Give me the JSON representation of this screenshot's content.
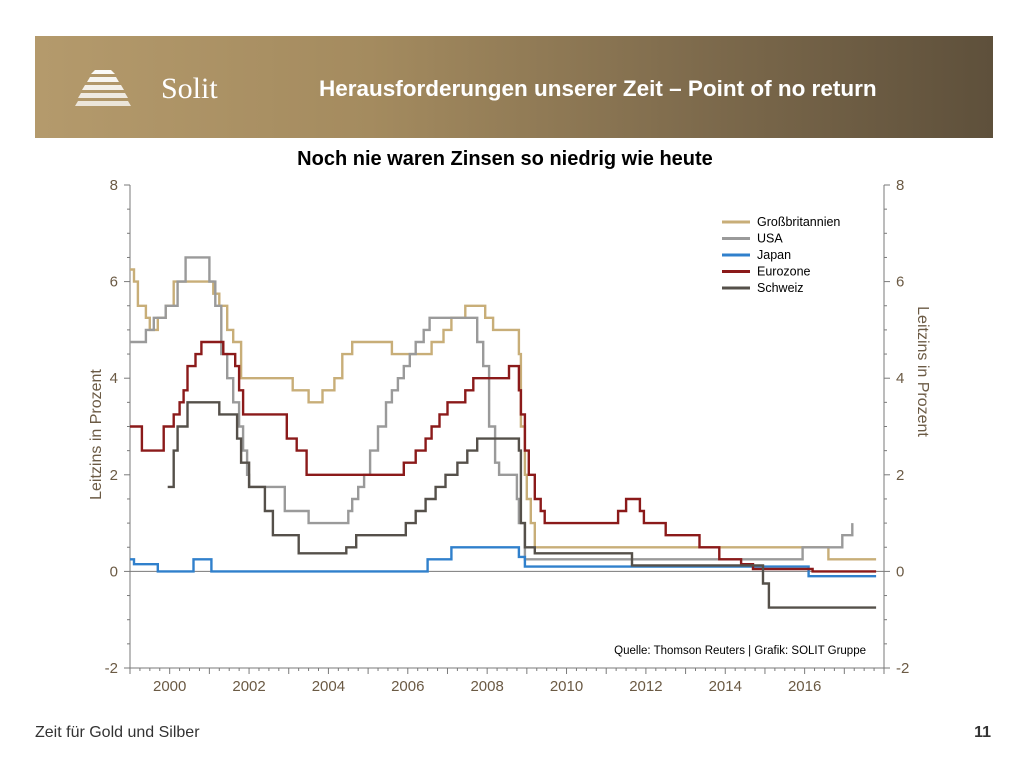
{
  "header": {
    "brand": "Solit",
    "title": "Herausforderungen unserer Zeit – Point of no return"
  },
  "footer": {
    "left_text": "Zeit für Gold und Silber",
    "page_number": "11"
  },
  "colors": {
    "banner_start": "#b49a6c",
    "banner_end": "#5e503b"
  },
  "chart_data": {
    "type": "line",
    "title": "Noch nie waren Zinsen so niedrig wie heute",
    "ylabel_left": "Leitzins in Prozent",
    "ylabel_right": "Leitzins in Prozent",
    "source": "Quelle: Thomson Reuters | Grafik: SOLIT Gruppe",
    "xlim": [
      1999.0,
      2018.0
    ],
    "ylim": [
      -2,
      8
    ],
    "x_ticks": [
      2000,
      2002,
      2004,
      2006,
      2008,
      2010,
      2012,
      2014,
      2016
    ],
    "y_ticks": [
      -2,
      0,
      2,
      4,
      6,
      8
    ],
    "legend_position": "top-right",
    "series": [
      {
        "name": "Großbritannien",
        "color": "#c8ae78",
        "points": [
          [
            1999.0,
            6.25
          ],
          [
            1999.1,
            6.0
          ],
          [
            1999.2,
            5.5
          ],
          [
            1999.4,
            5.25
          ],
          [
            1999.5,
            5.0
          ],
          [
            1999.7,
            5.25
          ],
          [
            1999.9,
            5.5
          ],
          [
            2000.1,
            6.0
          ],
          [
            2001.1,
            5.75
          ],
          [
            2001.25,
            5.5
          ],
          [
            2001.45,
            5.0
          ],
          [
            2001.6,
            4.75
          ],
          [
            2001.8,
            4.0
          ],
          [
            2003.1,
            3.75
          ],
          [
            2003.5,
            3.5
          ],
          [
            2003.85,
            3.75
          ],
          [
            2004.15,
            4.0
          ],
          [
            2004.35,
            4.5
          ],
          [
            2004.6,
            4.75
          ],
          [
            2005.6,
            4.5
          ],
          [
            2006.6,
            4.75
          ],
          [
            2006.9,
            5.0
          ],
          [
            2007.1,
            5.25
          ],
          [
            2007.45,
            5.5
          ],
          [
            2007.9,
            5.5
          ],
          [
            2007.95,
            5.25
          ],
          [
            2008.15,
            5.0
          ],
          [
            2008.8,
            4.5
          ],
          [
            2008.85,
            3.0
          ],
          [
            2008.95,
            2.0
          ],
          [
            2009.0,
            1.5
          ],
          [
            2009.1,
            1.0
          ],
          [
            2009.2,
            0.5
          ],
          [
            2016.6,
            0.25
          ],
          [
            2017.8,
            0.25
          ]
        ]
      },
      {
        "name": "USA",
        "color": "#9a9a9a",
        "points": [
          [
            1999.0,
            4.75
          ],
          [
            1999.4,
            5.0
          ],
          [
            1999.6,
            5.25
          ],
          [
            1999.9,
            5.5
          ],
          [
            2000.2,
            6.0
          ],
          [
            2000.4,
            6.5
          ],
          [
            2000.9,
            6.5
          ],
          [
            2001.0,
            6.0
          ],
          [
            2001.15,
            5.5
          ],
          [
            2001.3,
            4.5
          ],
          [
            2001.45,
            4.0
          ],
          [
            2001.6,
            3.5
          ],
          [
            2001.75,
            3.0
          ],
          [
            2001.85,
            2.5
          ],
          [
            2001.95,
            2.0
          ],
          [
            2002.0,
            1.75
          ],
          [
            2002.9,
            1.25
          ],
          [
            2003.5,
            1.0
          ],
          [
            2004.5,
            1.25
          ],
          [
            2004.6,
            1.5
          ],
          [
            2004.75,
            1.75
          ],
          [
            2004.9,
            2.0
          ],
          [
            2005.05,
            2.5
          ],
          [
            2005.25,
            3.0
          ],
          [
            2005.45,
            3.5
          ],
          [
            2005.6,
            3.75
          ],
          [
            2005.75,
            4.0
          ],
          [
            2005.9,
            4.25
          ],
          [
            2006.05,
            4.5
          ],
          [
            2006.2,
            4.75
          ],
          [
            2006.4,
            5.0
          ],
          [
            2006.55,
            5.25
          ],
          [
            2007.6,
            5.25
          ],
          [
            2007.75,
            4.75
          ],
          [
            2007.9,
            4.25
          ],
          [
            2008.05,
            3.0
          ],
          [
            2008.2,
            2.25
          ],
          [
            2008.3,
            2.0
          ],
          [
            2008.75,
            1.5
          ],
          [
            2008.8,
            1.0
          ],
          [
            2008.95,
            0.25
          ],
          [
            2015.95,
            0.5
          ],
          [
            2016.95,
            0.75
          ],
          [
            2017.2,
            1.0
          ]
        ]
      },
      {
        "name": "Japan",
        "color": "#3080cc",
        "points": [
          [
            1999.0,
            0.25
          ],
          [
            1999.1,
            0.15
          ],
          [
            1999.7,
            0.0
          ],
          [
            2000.6,
            0.25
          ],
          [
            2001.05,
            0.0
          ],
          [
            2006.5,
            0.25
          ],
          [
            2007.1,
            0.5
          ],
          [
            2008.8,
            0.3
          ],
          [
            2008.95,
            0.1
          ],
          [
            2016.1,
            -0.1
          ],
          [
            2017.8,
            -0.1
          ]
        ]
      },
      {
        "name": "Eurozone",
        "color": "#8b1a1a",
        "points": [
          [
            1999.0,
            3.0
          ],
          [
            1999.3,
            2.5
          ],
          [
            1999.85,
            3.0
          ],
          [
            2000.1,
            3.25
          ],
          [
            2000.25,
            3.5
          ],
          [
            2000.35,
            3.75
          ],
          [
            2000.45,
            4.25
          ],
          [
            2000.65,
            4.5
          ],
          [
            2000.8,
            4.75
          ],
          [
            2001.35,
            4.5
          ],
          [
            2001.65,
            4.25
          ],
          [
            2001.75,
            3.75
          ],
          [
            2001.85,
            3.25
          ],
          [
            2002.95,
            2.75
          ],
          [
            2003.2,
            2.5
          ],
          [
            2003.45,
            2.0
          ],
          [
            2005.9,
            2.25
          ],
          [
            2006.2,
            2.5
          ],
          [
            2006.45,
            2.75
          ],
          [
            2006.6,
            3.0
          ],
          [
            2006.8,
            3.25
          ],
          [
            2007.0,
            3.5
          ],
          [
            2007.45,
            3.75
          ],
          [
            2007.65,
            4.0
          ],
          [
            2008.55,
            4.25
          ],
          [
            2008.8,
            3.75
          ],
          [
            2008.85,
            3.25
          ],
          [
            2008.95,
            2.5
          ],
          [
            2009.05,
            2.0
          ],
          [
            2009.2,
            1.5
          ],
          [
            2009.35,
            1.25
          ],
          [
            2009.45,
            1.0
          ],
          [
            2011.3,
            1.25
          ],
          [
            2011.5,
            1.5
          ],
          [
            2011.85,
            1.25
          ],
          [
            2011.95,
            1.0
          ],
          [
            2012.5,
            0.75
          ],
          [
            2013.35,
            0.5
          ],
          [
            2013.85,
            0.25
          ],
          [
            2014.4,
            0.15
          ],
          [
            2014.7,
            0.05
          ],
          [
            2016.2,
            0.0
          ],
          [
            2017.8,
            0.0
          ]
        ]
      },
      {
        "name": "Schweiz",
        "color": "#55504a",
        "points": [
          [
            1999.95,
            1.75
          ],
          [
            2000.1,
            2.5
          ],
          [
            2000.2,
            3.0
          ],
          [
            2000.45,
            3.5
          ],
          [
            2001.25,
            3.25
          ],
          [
            2001.7,
            2.75
          ],
          [
            2001.8,
            2.25
          ],
          [
            2002.0,
            1.75
          ],
          [
            2002.4,
            1.25
          ],
          [
            2002.6,
            0.75
          ],
          [
            2003.25,
            0.375
          ],
          [
            2004.45,
            0.5
          ],
          [
            2004.7,
            0.75
          ],
          [
            2005.95,
            1.0
          ],
          [
            2006.2,
            1.25
          ],
          [
            2006.45,
            1.5
          ],
          [
            2006.7,
            1.75
          ],
          [
            2006.95,
            2.0
          ],
          [
            2007.25,
            2.25
          ],
          [
            2007.5,
            2.5
          ],
          [
            2007.75,
            2.75
          ],
          [
            2008.8,
            2.5
          ],
          [
            2008.85,
            1.0
          ],
          [
            2008.95,
            0.5
          ],
          [
            2009.2,
            0.375
          ],
          [
            2011.65,
            0.125
          ],
          [
            2014.95,
            -0.25
          ],
          [
            2015.1,
            -0.75
          ],
          [
            2017.8,
            -0.75
          ]
        ]
      }
    ]
  }
}
